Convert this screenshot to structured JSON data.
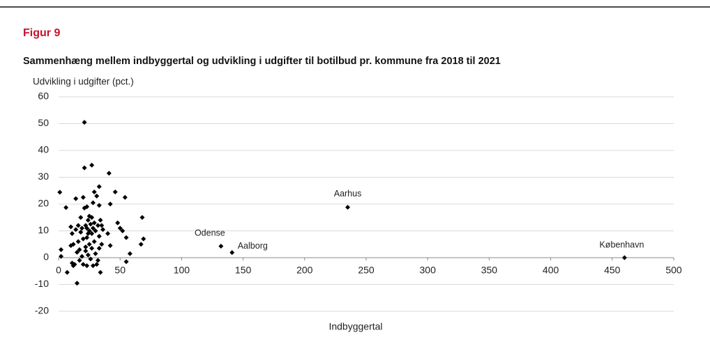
{
  "chart_data": {
    "type": "scatter",
    "figure_label": "Figur 9",
    "title": "Sammenhæng mellem indbyggertal og udvikling i udgifter til botilbud pr. kommune fra 2018 til 2021",
    "y_label": "Udvikling i udgifter (pct.)",
    "x_label": "Indbyggertal",
    "color": "#000000",
    "grid": true,
    "xlim": [
      0,
      500
    ],
    "xticks": [
      0,
      50,
      100,
      150,
      200,
      250,
      300,
      350,
      400,
      450,
      500
    ],
    "ylim": [
      -20,
      60
    ],
    "yticks": [
      60,
      50,
      40,
      30,
      20,
      10,
      0,
      -10,
      -20
    ],
    "x": [
      132,
      141,
      235,
      460,
      1,
      2,
      2,
      6,
      7,
      10,
      10,
      11,
      11,
      12,
      12,
      13,
      14,
      14,
      15,
      15,
      16,
      16,
      17,
      17,
      18,
      18,
      19,
      19,
      20,
      20,
      20,
      21,
      21,
      21,
      22,
      22,
      22,
      23,
      23,
      23,
      23,
      24,
      24,
      24,
      25,
      25,
      25,
      26,
      26,
      27,
      27,
      27,
      27,
      28,
      28,
      28,
      29,
      29,
      29,
      30,
      30,
      31,
      31,
      32,
      32,
      33,
      33,
      33,
      33,
      34,
      34,
      35,
      35,
      36,
      40,
      41,
      42,
      42,
      46,
      48,
      50,
      52,
      54,
      55,
      55,
      58,
      67,
      68,
      69
    ],
    "values": [
      4.3,
      1.9,
      18.8,
      0,
      24.4,
      3,
      0.5,
      18.7,
      -5.5,
      11.5,
      4.5,
      9,
      -2,
      5,
      -3,
      -2.5,
      22,
      10.5,
      -9.5,
      2,
      12,
      6,
      -1,
      3,
      15,
      9.5,
      11,
      0.5,
      22.5,
      7,
      -2.5,
      50.5,
      33.5,
      18.5,
      12,
      4,
      2.5,
      19,
      11,
      7.5,
      -3,
      14,
      9,
      1,
      15.5,
      10,
      5,
      12.5,
      -0.5,
      34.5,
      15,
      9,
      3.5,
      20.5,
      11,
      -3,
      24.5,
      13,
      6,
      10,
      1.5,
      -2.5,
      23,
      12,
      -1,
      19.5,
      26.5,
      8,
      3.5,
      -5.5,
      14,
      12,
      5,
      10.5,
      9,
      31.5,
      20,
      4.5,
      24.5,
      13,
      11,
      10,
      22.5,
      7.5,
      -1.5,
      1.5,
      5,
      15,
      7
    ],
    "point_labels": [
      "Odense",
      "Aalborg",
      "Aarhus",
      "København",
      null,
      null,
      null,
      null,
      null,
      null,
      null,
      null,
      null,
      null,
      null,
      null,
      null,
      null,
      null,
      null,
      null,
      null,
      null,
      null,
      null,
      null,
      null,
      null,
      null,
      null,
      null,
      null,
      null,
      null,
      null,
      null,
      null,
      null,
      null,
      null,
      null,
      null,
      null,
      null,
      null,
      null,
      null,
      null,
      null,
      null,
      null,
      null,
      null,
      null,
      null,
      null,
      null,
      null,
      null,
      null,
      null,
      null,
      null,
      null,
      null,
      null,
      null,
      null,
      null,
      null,
      null,
      null,
      null,
      null,
      null,
      null,
      null,
      null,
      null,
      null,
      null,
      null,
      null,
      null,
      null,
      null,
      null,
      null,
      null
    ]
  }
}
